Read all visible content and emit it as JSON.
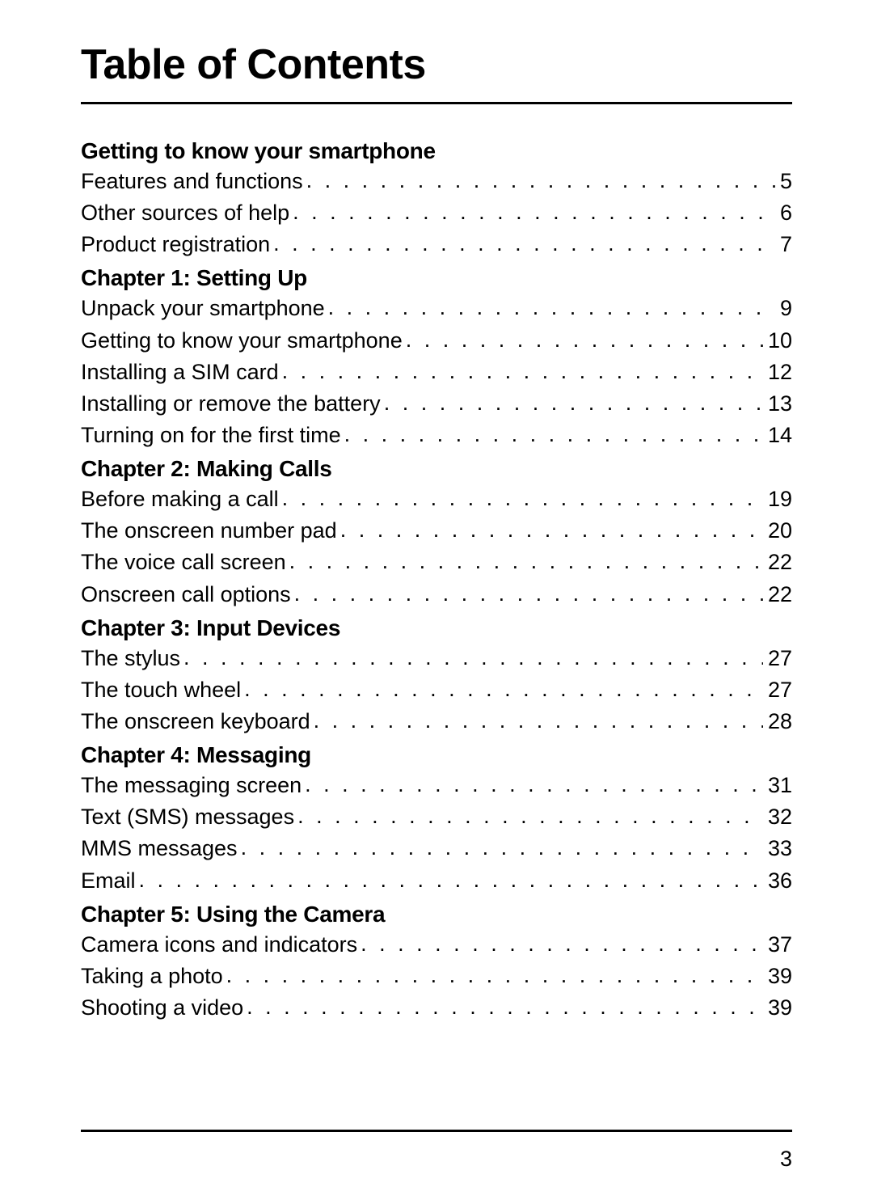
{
  "title": "Table of Contents",
  "page_number": "3",
  "colors": {
    "text": "#000000",
    "background": "#ffffff",
    "rule": "#000000"
  },
  "typography": {
    "title_fontsize": 52,
    "title_weight": 700,
    "heading_fontsize": 28,
    "heading_weight": 700,
    "entry_fontsize": 27,
    "entry_weight": 400,
    "page_number_fontsize": 27
  },
  "sections": [
    {
      "heading": "Getting to know your smartphone",
      "entries": [
        {
          "label": "Features and functions",
          "page": "5"
        },
        {
          "label": "Other sources of help",
          "page": "6"
        },
        {
          "label": "Product registration",
          "page": "7"
        }
      ]
    },
    {
      "heading": "Chapter 1: Setting Up",
      "entries": [
        {
          "label": "Unpack your smartphone",
          "page": "9"
        },
        {
          "label": "Getting to know your smartphone",
          "page": "10"
        },
        {
          "label": "Installing a SIM card",
          "page": "12"
        },
        {
          "label": "Installing or remove the battery",
          "page": "13"
        },
        {
          "label": "Turning on for the first time",
          "page": "14"
        }
      ]
    },
    {
      "heading": "Chapter 2: Making Calls",
      "entries": [
        {
          "label": "Before making a call",
          "page": "19"
        },
        {
          "label": "The onscreen number pad",
          "page": "20"
        },
        {
          "label": "The voice call screen",
          "page": "22"
        },
        {
          "label": "Onscreen call options",
          "page": "22"
        }
      ]
    },
    {
      "heading": "Chapter 3: Input Devices",
      "entries": [
        {
          "label": "The stylus",
          "page": "27"
        },
        {
          "label": "The touch wheel",
          "page": "27"
        },
        {
          "label": "The onscreen keyboard",
          "page": "28"
        }
      ]
    },
    {
      "heading": "Chapter 4: Messaging",
      "entries": [
        {
          "label": "The messaging screen",
          "page": "31"
        },
        {
          "label": "Text (SMS) messages",
          "page": "32"
        },
        {
          "label": "MMS messages",
          "page": "33"
        },
        {
          "label": "Email",
          "page": "36"
        }
      ]
    },
    {
      "heading": "Chapter 5: Using the Camera",
      "entries": [
        {
          "label": "Camera icons and indicators",
          "page": "37"
        },
        {
          "label": "Taking a photo",
          "page": "39"
        },
        {
          "label": "Shooting a video",
          "page": "39"
        }
      ]
    }
  ]
}
